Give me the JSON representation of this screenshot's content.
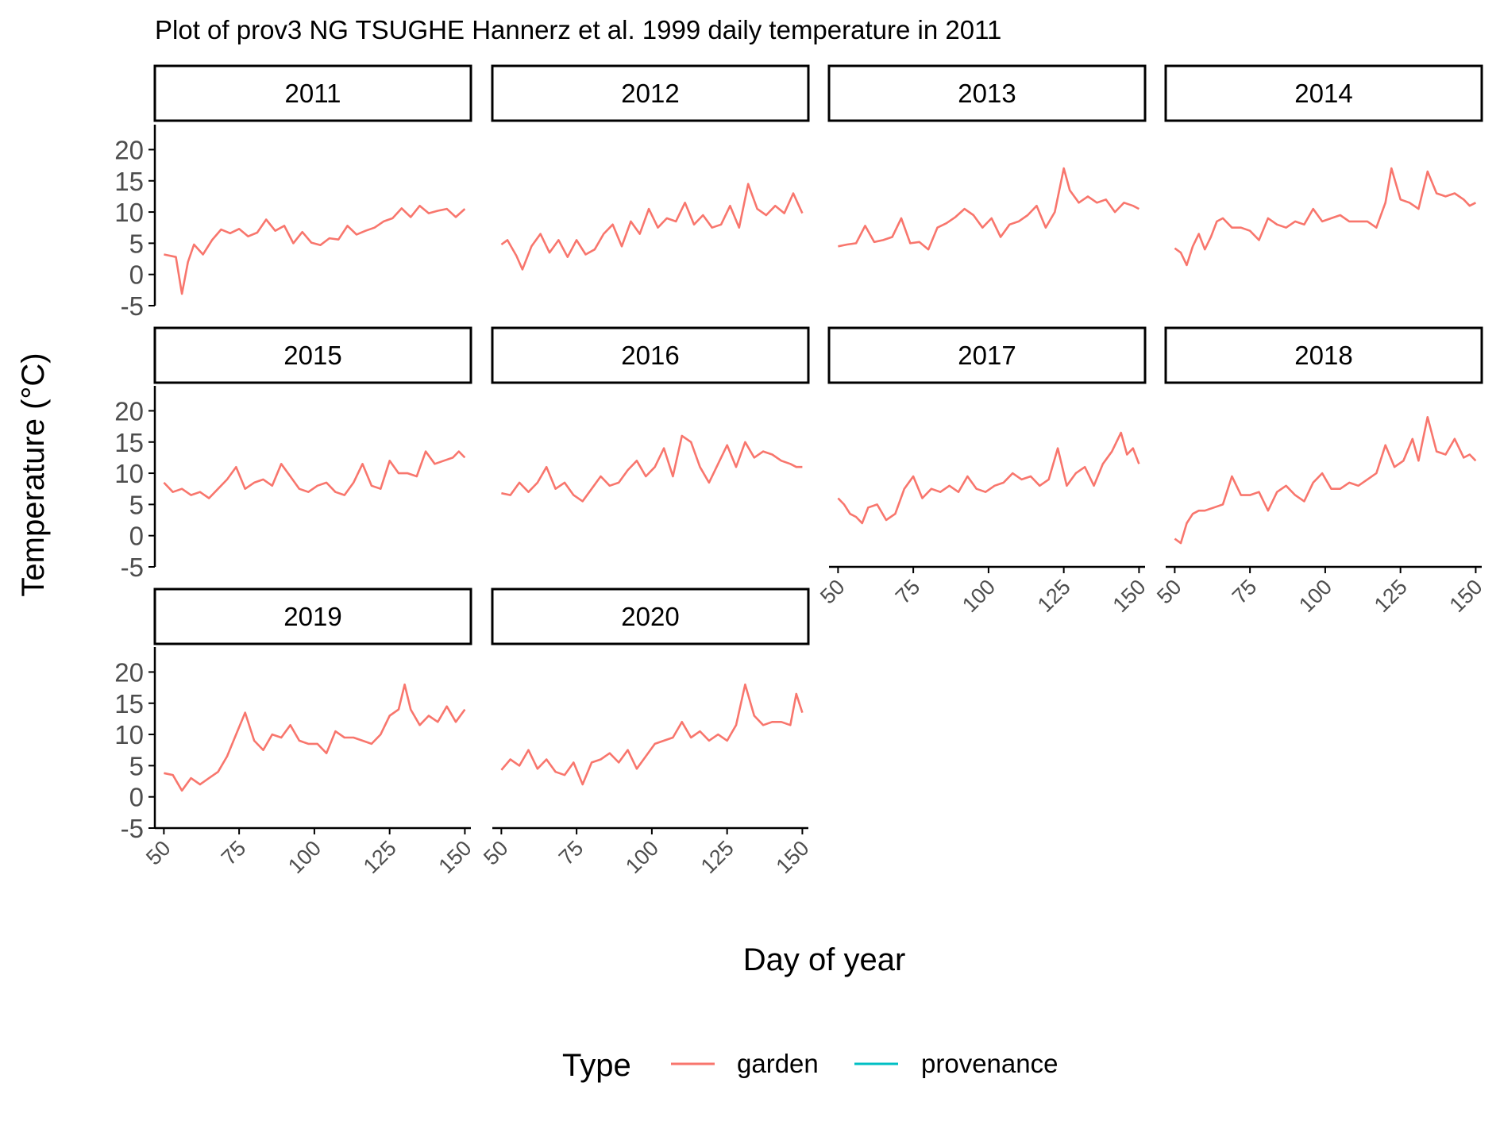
{
  "chart_data": {
    "type": "line",
    "title": "Plot of prov3 NG TSUGHE Hannerz et al. 1999 daily temperature in 2011",
    "xlabel": "Day of year",
    "ylabel": "Temperature (°C)",
    "xlim": [
      47,
      152
    ],
    "ylim": [
      -5,
      24
    ],
    "xticks": [
      "50",
      "75",
      "100",
      "125",
      "150"
    ],
    "yticks": [
      "-5",
      "0",
      "5",
      "10",
      "15",
      "20"
    ],
    "legend": {
      "title": "Type",
      "position": "bottom",
      "entries": [
        {
          "name": "garden",
          "color": "#F8766D"
        },
        {
          "name": "provenance",
          "color": "#00BFC4"
        }
      ]
    },
    "grid": false,
    "facets": [
      {
        "label": "2011",
        "x": [
          50,
          54,
          56,
          58,
          60,
          63,
          66,
          69,
          72,
          75,
          78,
          81,
          84,
          87,
          90,
          93,
          96,
          99,
          102,
          105,
          108,
          111,
          114,
          117,
          120,
          123,
          126,
          129,
          132,
          135,
          138,
          141,
          144,
          147,
          150
        ],
        "values": [
          3.2,
          2.8,
          -3.1,
          2.0,
          4.8,
          3.2,
          5.5,
          7.2,
          6.6,
          7.3,
          6.1,
          6.7,
          8.8,
          7.0,
          7.8,
          5.0,
          6.8,
          5.1,
          4.7,
          5.8,
          5.6,
          7.8,
          6.4,
          7.0,
          7.5,
          8.5,
          9.0,
          10.6,
          9.2,
          11.0,
          9.8,
          10.2,
          10.5,
          9.2,
          10.5
        ]
      },
      {
        "label": "2012",
        "x": [
          50,
          52,
          55,
          57,
          60,
          63,
          66,
          69,
          72,
          75,
          78,
          81,
          84,
          87,
          90,
          93,
          96,
          99,
          102,
          105,
          108,
          111,
          114,
          117,
          120,
          123,
          126,
          129,
          132,
          135,
          138,
          141,
          144,
          147,
          150
        ],
        "values": [
          4.8,
          5.5,
          3.0,
          0.8,
          4.5,
          6.5,
          3.5,
          5.5,
          2.8,
          5.5,
          3.2,
          4.0,
          6.5,
          8.0,
          4.5,
          8.5,
          6.5,
          10.5,
          7.5,
          9.0,
          8.5,
          11.5,
          8.0,
          9.5,
          7.5,
          8.0,
          11.0,
          7.5,
          14.5,
          10.5,
          9.5,
          11.0,
          9.8,
          13.0,
          9.8
        ]
      },
      {
        "label": "2013",
        "x": [
          50,
          53,
          56,
          59,
          62,
          65,
          68,
          71,
          74,
          77,
          80,
          83,
          86,
          89,
          92,
          95,
          98,
          101,
          104,
          107,
          110,
          113,
          116,
          119,
          122,
          125,
          127,
          130,
          133,
          136,
          139,
          142,
          145,
          148,
          150
        ],
        "values": [
          4.5,
          4.8,
          5.0,
          7.8,
          5.2,
          5.5,
          6.0,
          9.0,
          5.0,
          5.2,
          4.0,
          7.5,
          8.2,
          9.2,
          10.5,
          9.5,
          7.5,
          9.0,
          6.0,
          8.0,
          8.5,
          9.5,
          11.0,
          7.5,
          10.0,
          17.0,
          13.5,
          11.5,
          12.5,
          11.5,
          12.0,
          10.0,
          11.5,
          11.0,
          10.5
        ]
      },
      {
        "label": "2014",
        "x": [
          50,
          52,
          54,
          56,
          58,
          60,
          62,
          64,
          66,
          69,
          72,
          75,
          78,
          81,
          84,
          87,
          90,
          93,
          96,
          99,
          102,
          105,
          108,
          111,
          114,
          117,
          120,
          122,
          125,
          128,
          131,
          134,
          137,
          140,
          143,
          146,
          148,
          150
        ],
        "values": [
          4.2,
          3.5,
          1.5,
          4.5,
          6.5,
          4.0,
          6.0,
          8.5,
          9.0,
          7.5,
          7.5,
          7.0,
          5.5,
          9.0,
          8.0,
          7.5,
          8.5,
          8.0,
          10.5,
          8.5,
          9.0,
          9.5,
          8.5,
          8.5,
          8.5,
          7.5,
          11.5,
          17.0,
          12.0,
          11.5,
          10.5,
          16.5,
          13.0,
          12.5,
          13.0,
          12.0,
          11.0,
          11.5
        ]
      },
      {
        "label": "2015",
        "x": [
          50,
          53,
          56,
          59,
          62,
          65,
          68,
          71,
          74,
          77,
          80,
          83,
          86,
          89,
          92,
          95,
          98,
          101,
          104,
          107,
          110,
          113,
          116,
          119,
          122,
          125,
          128,
          131,
          134,
          137,
          140,
          143,
          146,
          148,
          150
        ],
        "values": [
          8.5,
          7.0,
          7.5,
          6.5,
          7.0,
          6.0,
          7.5,
          9.0,
          11.0,
          7.5,
          8.5,
          9.0,
          8.0,
          11.5,
          9.5,
          7.5,
          7.0,
          8.0,
          8.5,
          7.0,
          6.5,
          8.5,
          11.5,
          8.0,
          7.5,
          12.0,
          10.0,
          10.0,
          9.5,
          13.5,
          11.5,
          12.0,
          12.5,
          13.5,
          12.5
        ]
      },
      {
        "label": "2016",
        "x": [
          50,
          53,
          56,
          59,
          62,
          65,
          68,
          71,
          74,
          77,
          80,
          83,
          86,
          89,
          92,
          95,
          98,
          101,
          104,
          107,
          110,
          113,
          116,
          119,
          122,
          125,
          128,
          131,
          134,
          137,
          140,
          143,
          146,
          148,
          150
        ],
        "values": [
          6.8,
          6.5,
          8.5,
          7.0,
          8.5,
          11.0,
          7.5,
          8.5,
          6.5,
          5.5,
          7.5,
          9.5,
          8.0,
          8.5,
          10.5,
          12.0,
          9.5,
          11.0,
          14.0,
          9.5,
          16.0,
          15.0,
          11.0,
          8.5,
          11.5,
          14.5,
          11.0,
          15.0,
          12.5,
          13.5,
          13.0,
          12.0,
          11.5,
          11.0,
          11.0
        ]
      },
      {
        "label": "2017",
        "x": [
          50,
          52,
          54,
          56,
          58,
          60,
          63,
          66,
          69,
          72,
          75,
          78,
          81,
          84,
          87,
          90,
          93,
          96,
          99,
          102,
          105,
          108,
          111,
          114,
          117,
          120,
          123,
          126,
          129,
          132,
          135,
          138,
          141,
          144,
          146,
          148,
          150
        ],
        "values": [
          6.0,
          5.0,
          3.5,
          3.0,
          2.0,
          4.5,
          5.0,
          2.5,
          3.5,
          7.5,
          9.5,
          6.0,
          7.5,
          7.0,
          8.0,
          7.0,
          9.5,
          7.5,
          7.0,
          8.0,
          8.5,
          10.0,
          9.0,
          9.5,
          8.0,
          9.0,
          14.0,
          8.0,
          10.0,
          11.0,
          8.0,
          11.5,
          13.5,
          16.5,
          13.0,
          14.0,
          11.5
        ]
      },
      {
        "label": "2018",
        "x": [
          50,
          52,
          54,
          56,
          58,
          60,
          63,
          66,
          69,
          72,
          75,
          78,
          81,
          84,
          87,
          90,
          93,
          96,
          99,
          102,
          105,
          108,
          111,
          114,
          117,
          120,
          123,
          126,
          129,
          131,
          134,
          137,
          140,
          143,
          146,
          148,
          150
        ],
        "values": [
          -0.5,
          -1.2,
          2.0,
          3.5,
          4.0,
          4.0,
          4.5,
          5.0,
          9.5,
          6.5,
          6.5,
          7.0,
          4.0,
          7.0,
          8.0,
          6.5,
          5.5,
          8.5,
          10.0,
          7.5,
          7.5,
          8.5,
          8.0,
          9.0,
          10.0,
          14.5,
          11.0,
          12.0,
          15.5,
          12.0,
          19.0,
          13.5,
          13.0,
          15.5,
          12.5,
          13.0,
          12.0
        ]
      },
      {
        "label": "2019",
        "x": [
          50,
          53,
          56,
          59,
          62,
          65,
          68,
          71,
          74,
          77,
          80,
          83,
          86,
          89,
          92,
          95,
          98,
          101,
          104,
          107,
          110,
          113,
          116,
          119,
          122,
          125,
          128,
          130,
          132,
          135,
          138,
          141,
          144,
          147,
          150
        ],
        "values": [
          3.8,
          3.5,
          1.0,
          3.0,
          2.0,
          3.0,
          4.0,
          6.5,
          10.0,
          13.5,
          9.0,
          7.5,
          10.0,
          9.5,
          11.5,
          9.0,
          8.5,
          8.5,
          7.0,
          10.5,
          9.5,
          9.5,
          9.0,
          8.5,
          10.0,
          13.0,
          14.0,
          18.0,
          14.0,
          11.5,
          13.0,
          12.0,
          14.5,
          12.0,
          14.0
        ]
      },
      {
        "label": "2020",
        "x": [
          50,
          53,
          56,
          59,
          62,
          65,
          68,
          71,
          74,
          77,
          80,
          83,
          86,
          89,
          92,
          95,
          98,
          101,
          104,
          107,
          110,
          113,
          116,
          119,
          122,
          125,
          128,
          131,
          134,
          137,
          140,
          143,
          146,
          148,
          150
        ],
        "values": [
          4.3,
          6.0,
          5.0,
          7.5,
          4.5,
          6.0,
          4.0,
          3.5,
          5.5,
          2.0,
          5.5,
          6.0,
          7.0,
          5.5,
          7.5,
          4.5,
          6.5,
          8.5,
          9.0,
          9.5,
          12.0,
          9.5,
          10.5,
          9.0,
          10.0,
          9.0,
          11.5,
          18.0,
          13.0,
          11.5,
          12.0,
          12.0,
          11.5,
          16.5,
          13.5
        ]
      }
    ]
  }
}
